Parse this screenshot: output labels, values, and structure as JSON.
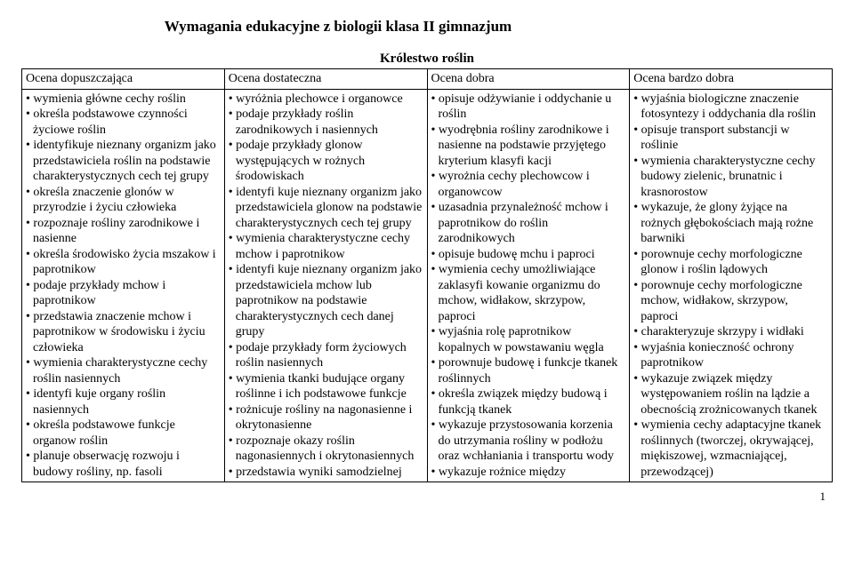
{
  "title": "Wymagania edukacyjne z biologii klasa II gimnazjum",
  "subtitle": "Królestwo roślin",
  "headers": [
    "Ocena dopuszczająca",
    "Ocena dostateczna",
    "Ocena dobra",
    "Ocena bardzo dobra"
  ],
  "columns": [
    [
      "wymienia główne cechy roślin",
      "określa podstawowe czynności życiowe roślin",
      "identyfikuje nieznany organizm jako przedstawiciela roślin na podstawie charakterystycznych cech tej grupy",
      "określa znaczenie glonów w przyrodzie i życiu człowieka",
      "rozpoznaje rośliny zarodnikowe i nasienne",
      "określa środowisko życia mszakow i paprotnikow",
      "podaje przykłady mchow i paprotnikow",
      "przedstawia znaczenie mchow i paprotnikow w środowisku i życiu człowieka",
      "wymienia charakterystyczne cechy roślin nasiennych",
      "identyfi kuje organy roślin nasiennych",
      "określa podstawowe funkcje organow roślin",
      "planuje obserwację rozwoju i budowy rośliny, np. fasoli"
    ],
    [
      "wyróżnia plechowce i organowce",
      "podaje przykłady roślin zarodnikowych i nasiennych",
      "podaje przykłady glonow występujących w rożnych środowiskach",
      "identyfi kuje nieznany organizm jako przedstawiciela glonow na podstawie charakterystycznych cech tej grupy",
      "wymienia charakterystyczne cechy mchow i paprotnikow",
      "identyfi kuje nieznany organizm jako przedstawiciela mchow lub paprotnikow na podstawie charakterystycznych cech danej grupy",
      "podaje przykłady form życiowych roślin nasiennych",
      "wymienia tkanki budujące organy roślinne i ich podstawowe funkcje",
      "rożnicuje rośliny na nagonasienne i okrytonasienne",
      "rozpoznaje okazy roślin nagonasiennych i okrytonasiennych",
      "przedstawia wyniki samodzielnej"
    ],
    [
      "opisuje odżywianie i oddychanie u roślin",
      "wyodrębnia rośliny zarodnikowe i nasienne na podstawie przyjętego kryterium klasyfi kacji",
      "wyrożnia cechy plechowcow i organowcow",
      "uzasadnia przynależność mchow i paprotnikow do roślin zarodnikowych",
      "opisuje budowę mchu i paproci",
      "wymienia cechy umożliwiające zaklasyfi kowanie organizmu do mchow, widłakow, skrzypow, paproci",
      "wyjaśnia rolę paprotnikow kopalnych w powstawaniu węgla",
      "porownuje budowę i funkcje tkanek roślinnych",
      "określa związek między budową i funkcją tkanek",
      "wykazuje przystosowania korzenia do utrzymania rośliny w podłożu oraz wchłaniania i transportu wody",
      "wykazuje rożnice między"
    ],
    [
      "wyjaśnia biologiczne znaczenie fotosyntezy i oddychania dla roślin",
      "opisuje transport substancji w roślinie",
      "wymienia charakterystyczne cechy budowy zielenic, brunatnic i krasnorostow",
      "wykazuje, że glony żyjące na rożnych głębokościach mają rożne barwniki",
      "porownuje cechy morfologiczne glonow i roślin lądowych",
      "porownuje cechy morfologiczne mchow, widłakow, skrzypow, paproci",
      "charakteryzuje skrzypy i widłaki",
      "wyjaśnia konieczność ochrony paprotnikow",
      "wykazuje związek między występowaniem roślin na lądzie a obecnością zrożnicowanych tkanek",
      "wymienia cechy adaptacyjne tkanek roślinnych (tworczej, okrywającej, miękiszowej, wzmacniającej, przewodzącej)"
    ]
  ],
  "pageNumber": "1",
  "layout": {
    "colWidths": [
      "25%",
      "25%",
      "25%",
      "25%"
    ]
  }
}
